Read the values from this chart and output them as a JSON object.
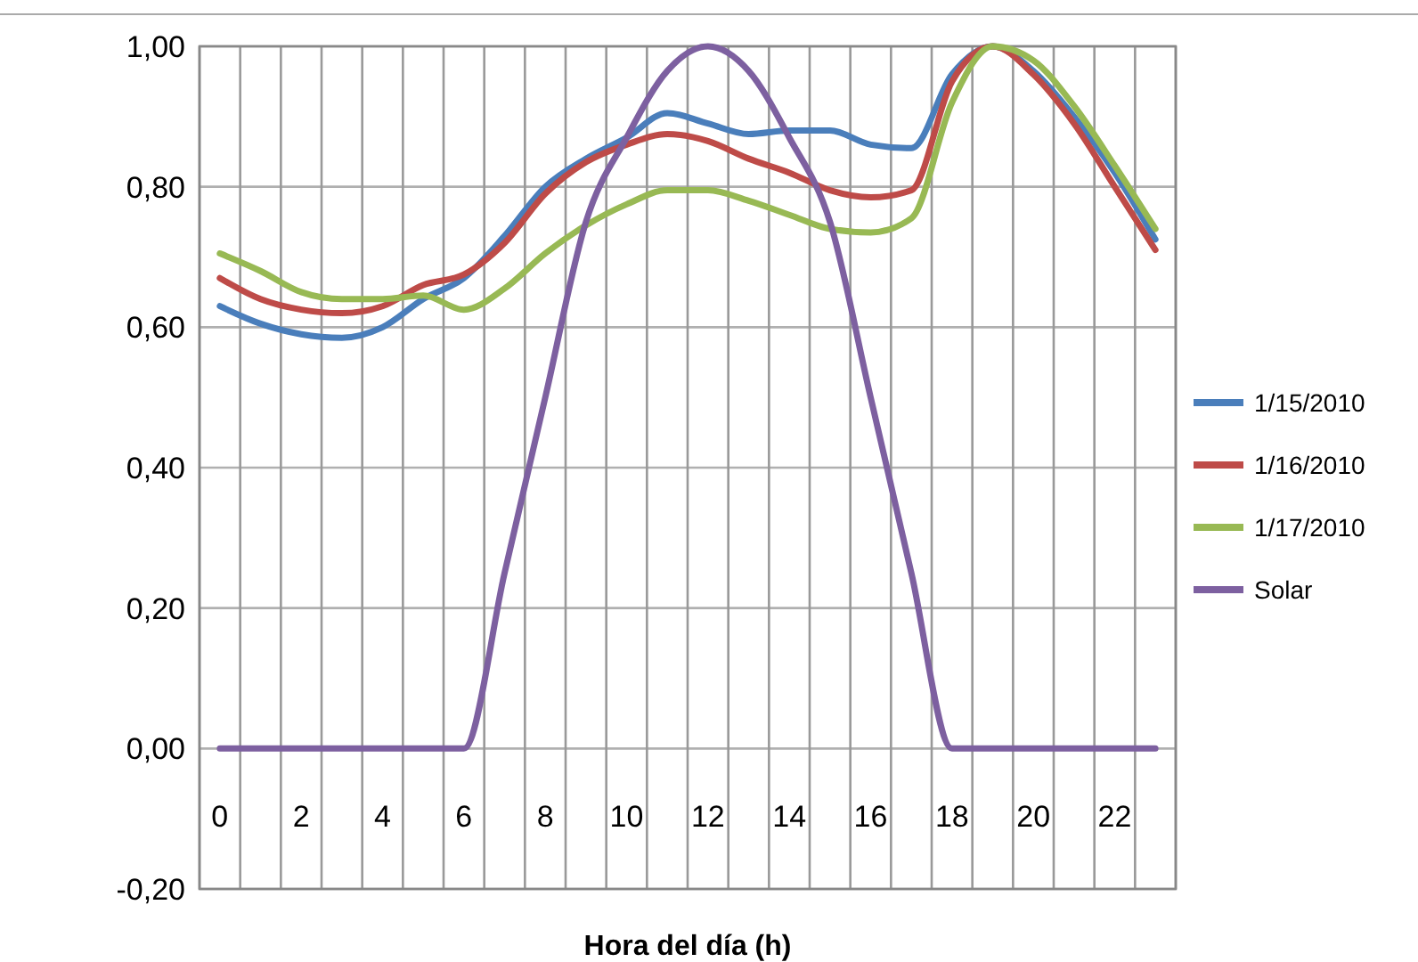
{
  "chart_data": {
    "type": "line",
    "xlabel": "Hora del día (h)",
    "categories": [
      "0",
      null,
      "2",
      null,
      "4",
      null,
      "6",
      null,
      "8",
      null,
      "10",
      null,
      "12",
      null,
      "14",
      null,
      "16",
      null,
      "18",
      null,
      "20",
      null,
      "22",
      null
    ],
    "series": [
      {
        "name": "1/15/2010",
        "color": "#4a7ebb",
        "values": [
          0.63,
          0.605,
          0.59,
          0.585,
          0.6,
          0.64,
          0.67,
          0.73,
          0.8,
          0.84,
          0.87,
          0.905,
          0.89,
          0.875,
          0.88,
          0.88,
          0.86,
          0.855,
          0.96,
          1.0,
          0.965,
          0.9,
          0.82,
          0.725
        ]
      },
      {
        "name": "1/16/2010",
        "color": "#be4b48",
        "values": [
          0.67,
          0.64,
          0.625,
          0.62,
          0.63,
          0.66,
          0.675,
          0.72,
          0.79,
          0.835,
          0.86,
          0.875,
          0.865,
          0.84,
          0.82,
          0.795,
          0.785,
          0.795,
          0.95,
          1.0,
          0.96,
          0.89,
          0.8,
          0.71
        ]
      },
      {
        "name": "1/17/2010",
        "color": "#98b954",
        "values": [
          0.705,
          0.68,
          0.65,
          0.64,
          0.64,
          0.645,
          0.625,
          0.655,
          0.705,
          0.745,
          0.775,
          0.795,
          0.795,
          0.78,
          0.76,
          0.74,
          0.735,
          0.755,
          0.92,
          1.0,
          0.98,
          0.915,
          0.83,
          0.74
        ]
      },
      {
        "name": "Solar",
        "color": "#7d60a0",
        "values": [
          0,
          0,
          0,
          0,
          0,
          0,
          0,
          0.25,
          0.5,
          0.75,
          0.87,
          0.965,
          1.0,
          0.965,
          0.87,
          0.75,
          0.5,
          0.25,
          0,
          0,
          0,
          0,
          0,
          0
        ]
      }
    ],
    "ylim": [
      -0.2,
      1.0
    ],
    "yticks": [
      {
        "value": -0.2,
        "label": "-0,20"
      },
      {
        "value": 0,
        "label": "0,00"
      },
      {
        "value": 0.2,
        "label": "0,20"
      },
      {
        "value": 0.4,
        "label": "0,40"
      },
      {
        "value": 0.6,
        "label": "0,60"
      },
      {
        "value": 0.8,
        "label": "0,80"
      },
      {
        "value": 1.0,
        "label": "1,00"
      }
    ],
    "grid": true,
    "legend": "right",
    "marker": "none",
    "line_style": "solid"
  }
}
